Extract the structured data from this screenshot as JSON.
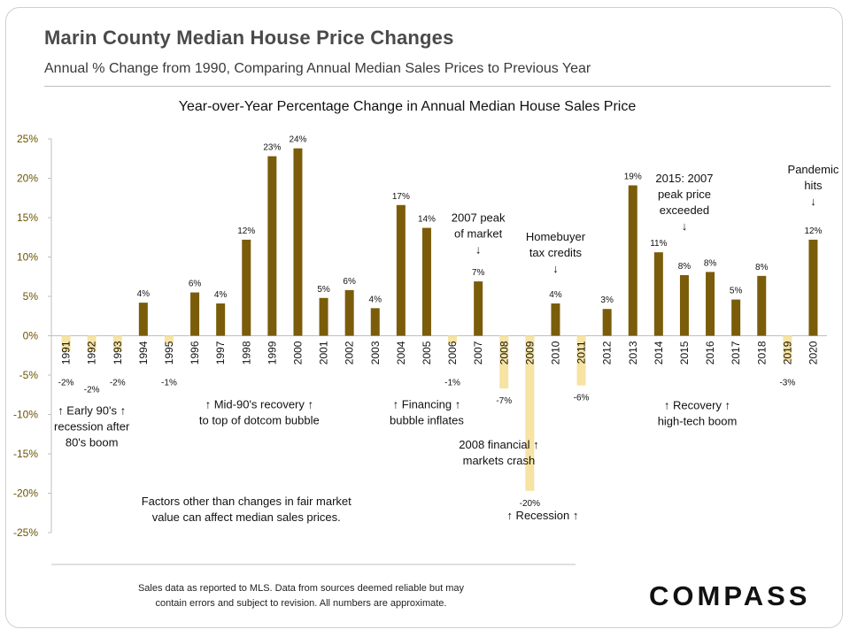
{
  "header": {
    "title": "Marin County Median House Price Changes",
    "subtitle": "Annual % Change from 1990, Comparing Annual Median Sales Prices to Previous Year"
  },
  "footer": {
    "note_line1": "Sales data as reported to MLS. Data from sources deemed reliable but may",
    "note_line2": "contain errors and subject to revision. All numbers are approximate.",
    "logo": "COMPASS"
  },
  "colors": {
    "positive_bar": "#7a5c0a",
    "negative_bar": "#f7e3a2",
    "axis": "#bfbfbf",
    "tick_label": "#6b5300"
  },
  "chart_data": {
    "type": "bar",
    "title": "Year-over-Year Percentage Change in Annual Median House Sales Price",
    "ylim": [
      -25,
      25
    ],
    "yticks": [
      25,
      20,
      15,
      10,
      5,
      0,
      -5,
      -10,
      -15,
      -20,
      -25
    ],
    "ytick_labels": [
      "25%",
      "20%",
      "15%",
      "10%",
      "5%",
      "0%",
      "-5%",
      "-10%",
      "-15%",
      "-20%",
      "-25%"
    ],
    "grid": false,
    "categories": [
      "1991",
      "1992",
      "1993",
      "1994",
      "1995",
      "1996",
      "1997",
      "1998",
      "1999",
      "2000",
      "2001",
      "2002",
      "2003",
      "2004",
      "2005",
      "2006",
      "2007",
      "2008",
      "2009",
      "2010",
      "2011",
      "2012",
      "2013",
      "2014",
      "2015",
      "2016",
      "2017",
      "2018",
      "2019",
      "2020"
    ],
    "values": [
      -2,
      -2,
      -2,
      4.2,
      -1,
      5.5,
      4.1,
      12.2,
      22.8,
      23.8,
      4.8,
      5.8,
      3.5,
      16.6,
      13.7,
      -1,
      6.9,
      -6.7,
      -19.7,
      4.1,
      -6.3,
      3.4,
      19.1,
      10.6,
      7.7,
      8.1,
      4.6,
      7.6,
      -3.2,
      12.2
    ],
    "labels": [
      "-2%",
      "-2%",
      "-2%",
      "4%",
      "-1%",
      "6%",
      "4%",
      "12%",
      "23%",
      "24%",
      "5%",
      "6%",
      "4%",
      "17%",
      "14%",
      "-1%",
      "7%",
      "-7%",
      "-20%",
      "4%",
      "-6%",
      "3%",
      "19%",
      "11%",
      "8%",
      "8%",
      "5%",
      "8%",
      "-3%",
      "12%"
    ],
    "annotations": [
      {
        "id": "a1",
        "lines": [
          "↑ Early 90's ↑",
          "recession after",
          "80's boom"
        ],
        "year": "1992",
        "y": -10
      },
      {
        "id": "a2",
        "lines": [
          "↑ Mid-90's recovery ↑",
          "to top of dotcom bubble"
        ],
        "year": "1998.5",
        "y": -9.2
      },
      {
        "id": "a3",
        "lines": [
          "↑ Financing ↑",
          "bubble inflates"
        ],
        "year": "2005",
        "y": -9.2
      },
      {
        "id": "a4",
        "lines": [
          "2008 financial ↑",
          "markets crash"
        ],
        "year": "2007.8",
        "y": -14.3
      },
      {
        "id": "a5",
        "lines": [
          "↑ Recession ↑"
        ],
        "year": "2009.5",
        "y": -23.3
      },
      {
        "id": "a6",
        "lines": [
          "↑        Recovery    ↑",
          "high-tech boom"
        ],
        "year": "2015.5",
        "y": -9.3
      },
      {
        "id": "a7",
        "lines": [
          "2007 peak",
          "of market",
          "↓"
        ],
        "year": "2007",
        "y": 14.5
      },
      {
        "id": "a8",
        "lines": [
          "Homebuyer",
          "tax credits",
          "↓"
        ],
        "year": "2010",
        "y": 12.1
      },
      {
        "id": "a9",
        "lines": [
          "2015: 2007",
          "peak price",
          "exceeded",
          "↓"
        ],
        "year": "2015",
        "y": 19.5
      },
      {
        "id": "a10",
        "lines": [
          "Pandemic",
          "hits",
          "↓"
        ],
        "year": "2020",
        "y": 20.6
      },
      {
        "id": "a11",
        "lines": [
          "Factors other than changes in fair market",
          "value can affect median sales prices."
        ],
        "year": "1998",
        "y": -21.5
      }
    ]
  }
}
